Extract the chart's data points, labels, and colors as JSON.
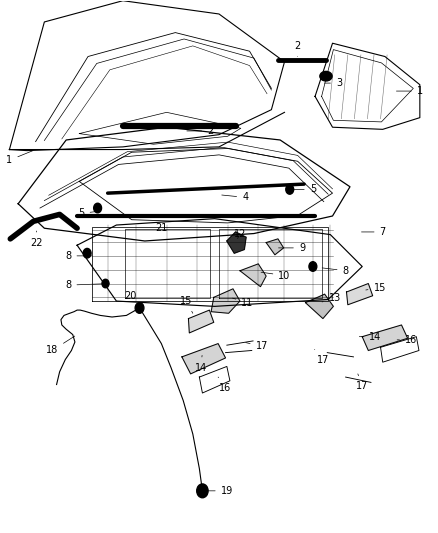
{
  "bg_color": "#ffffff",
  "line_color": "#000000",
  "label_color": "#000000",
  "font_size": 7,
  "marker_size": 3,
  "label_positions": {
    "1a": [
      0.08,
      0.72,
      0.02,
      0.7
    ],
    "1b": [
      0.9,
      0.83,
      0.96,
      0.83
    ],
    "2a": [
      0.42,
      0.755,
      0.48,
      0.755
    ],
    "2b": [
      0.68,
      0.895,
      0.68,
      0.915
    ],
    "3": [
      0.735,
      0.845,
      0.775,
      0.845
    ],
    "4": [
      0.5,
      0.635,
      0.56,
      0.63
    ],
    "5a": [
      0.235,
      0.605,
      0.185,
      0.6
    ],
    "5b": [
      0.665,
      0.645,
      0.715,
      0.645
    ],
    "7": [
      0.82,
      0.565,
      0.875,
      0.565
    ],
    "8a": [
      0.215,
      0.52,
      0.155,
      0.52
    ],
    "8b": [
      0.255,
      0.468,
      0.155,
      0.465
    ],
    "8c": [
      0.73,
      0.498,
      0.79,
      0.492
    ],
    "9": [
      0.63,
      0.535,
      0.69,
      0.535
    ],
    "10": [
      0.59,
      0.49,
      0.65,
      0.483
    ],
    "11": [
      0.525,
      0.442,
      0.565,
      0.432
    ],
    "12": [
      0.54,
      0.548,
      0.548,
      0.562
    ],
    "13": [
      0.73,
      0.432,
      0.765,
      0.44
    ],
    "14a": [
      0.462,
      0.338,
      0.458,
      0.31
    ],
    "14b": [
      0.815,
      0.368,
      0.858,
      0.368
    ],
    "15a": [
      0.44,
      0.412,
      0.425,
      0.435
    ],
    "15b": [
      0.83,
      0.455,
      0.868,
      0.46
    ],
    "16a": [
      0.498,
      0.292,
      0.515,
      0.272
    ],
    "16b": [
      0.908,
      0.362,
      0.94,
      0.362
    ],
    "17a": [
      0.555,
      0.358,
      0.598,
      0.35
    ],
    "17b": [
      0.715,
      0.348,
      0.738,
      0.325
    ],
    "17c": [
      0.818,
      0.298,
      0.828,
      0.275
    ],
    "18": [
      0.175,
      0.372,
      0.118,
      0.342
    ],
    "19": [
      0.462,
      0.078,
      0.518,
      0.078
    ],
    "20": [
      0.318,
      0.422,
      0.298,
      0.445
    ],
    "21": [
      0.368,
      0.592,
      0.368,
      0.572
    ],
    "22": [
      0.082,
      0.572,
      0.082,
      0.545
    ]
  },
  "label_texts": {
    "1a": "1",
    "1b": "1",
    "2a": "2",
    "2b": "2",
    "3": "3",
    "4": "4",
    "5a": "5",
    "5b": "5",
    "7": "7",
    "8a": "8",
    "8b": "8",
    "8c": "8",
    "9": "9",
    "10": "10",
    "11": "11",
    "12": "12",
    "13": "13",
    "14a": "14",
    "14b": "14",
    "15a": "15",
    "15b": "15",
    "16a": "16",
    "16b": "16",
    "17a": "17",
    "17b": "17",
    "17c": "17",
    "18": "18",
    "19": "19",
    "20": "20",
    "21": "21",
    "22": "22"
  }
}
